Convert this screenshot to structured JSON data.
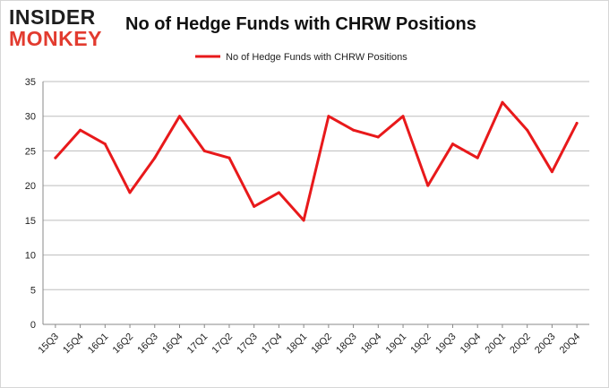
{
  "logo": {
    "line1": "INSIDER",
    "line2": "MONKEY"
  },
  "chart_data": {
    "type": "line",
    "title": "No of Hedge Funds with CHRW Positions",
    "xlabel": "",
    "ylabel": "",
    "ylim": [
      0,
      35
    ],
    "yticks": [
      0,
      5,
      10,
      15,
      20,
      25,
      30,
      35
    ],
    "grid": true,
    "legend_position": "top-center",
    "categories": [
      "15Q3",
      "15Q4",
      "16Q1",
      "16Q2",
      "16Q3",
      "16Q4",
      "17Q1",
      "17Q2",
      "17Q3",
      "17Q4",
      "18Q1",
      "18Q2",
      "18Q3",
      "18Q4",
      "19Q1",
      "19Q2",
      "19Q3",
      "19Q4",
      "20Q1",
      "20Q2",
      "20Q3",
      "20Q4"
    ],
    "series": [
      {
        "name": "No of Hedge Funds with CHRW  Positions",
        "color": "#e8191b",
        "values": [
          24,
          28,
          26,
          19,
          24,
          30,
          25,
          24,
          17,
          19,
          15,
          30,
          28,
          27,
          30,
          20,
          26,
          24,
          32,
          28,
          22,
          29
        ]
      }
    ]
  }
}
